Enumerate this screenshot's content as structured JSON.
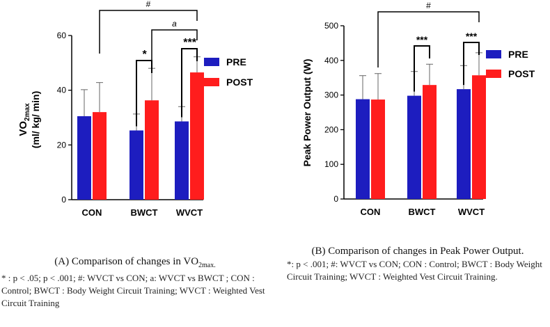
{
  "colors": {
    "pre": "#1d1dbf",
    "post": "#ff1d1d"
  },
  "chart_data": [
    {
      "type": "bar",
      "panel": "A",
      "ylabel": "VO2max (ml/ kg/ min)",
      "ylabel_main": "VO",
      "ylabel_sub": "2max",
      "ylabel_line2": "(ml/ kg/ min)",
      "ylim": [
        0,
        60
      ],
      "yticks": [
        0,
        20,
        40,
        60
      ],
      "categories": [
        "CON",
        "BWCT",
        "WVCT"
      ],
      "series": [
        {
          "name": "PRE",
          "values": [
            30.5,
            25.3,
            28.6
          ],
          "errors": [
            9.7,
            6.0,
            5.4
          ]
        },
        {
          "name": "POST",
          "values": [
            32.0,
            36.3,
            46.5
          ],
          "errors": [
            10.8,
            11.7,
            5.7
          ]
        }
      ],
      "legend": [
        "PRE",
        "POST"
      ],
      "annotations": {
        "within_bwct": "*",
        "within_wvct": "***",
        "between_top": "#",
        "between_mid": "a"
      }
    },
    {
      "type": "bar",
      "panel": "B",
      "ylabel": "Peak Power Output (W)",
      "ylim": [
        0,
        500
      ],
      "yticks": [
        0,
        100,
        200,
        300,
        400,
        500
      ],
      "categories": [
        "CON",
        "BWCT",
        "WVCT"
      ],
      "series": [
        {
          "name": "PRE",
          "values": [
            288,
            298,
            317
          ],
          "errors": [
            68,
            70,
            68
          ]
        },
        {
          "name": "POST",
          "values": [
            287,
            329,
            357
          ],
          "errors": [
            75,
            60,
            65
          ]
        }
      ],
      "legend": [
        "PRE",
        "POST"
      ],
      "annotations": {
        "within_bwct": "***",
        "within_wvct": "***",
        "between_top": "#"
      }
    }
  ],
  "captions": {
    "a_title_main": "(A) Comparison of changes in VO",
    "a_title_sub": "2max.",
    "a_note": "* : p < .05; p < .001; #: WVCT vs CON; a: WVCT vs BWCT ; CON : Control; BWCT : Body Weight Circuit Training; WVCT : Weighted Vest Circuit Training",
    "b_title": "(B) Comparison of changes in Peak Power Output.",
    "b_note": "*: p < .001; #: WVCT vs CON; CON : Control; BWCT : Body Weight Circuit Training; WVCT : Weighted Vest Circuit Training."
  }
}
